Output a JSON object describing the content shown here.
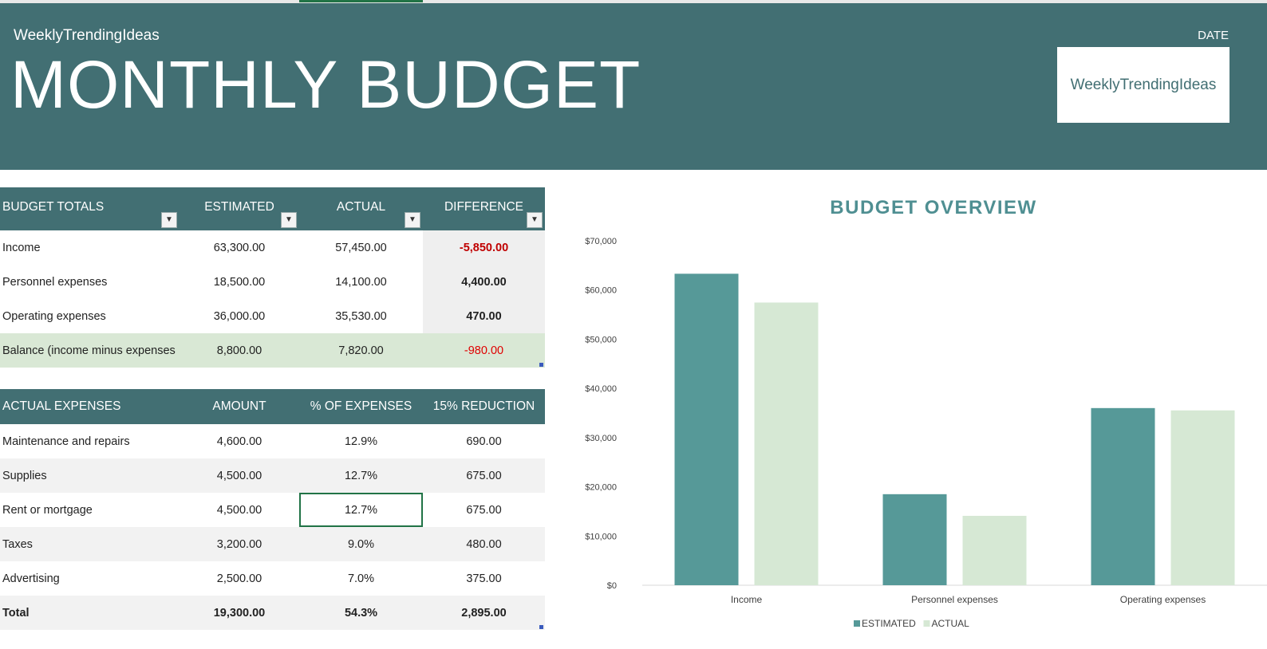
{
  "header": {
    "brand": "WeeklyTrendingIdeas",
    "title": "MONTHLY BUDGET",
    "date_label": "DATE",
    "logo_text": "WeeklyTrendingIdeas"
  },
  "budget_totals": {
    "headers": [
      "BUDGET TOTALS",
      "ESTIMATED",
      "ACTUAL",
      "DIFFERENCE"
    ],
    "rows": [
      {
        "label": "Income",
        "estimated": "63,300.00",
        "actual": "57,450.00",
        "difference": "-5,850.00"
      },
      {
        "label": "Personnel expenses",
        "estimated": "18,500.00",
        "actual": "14,100.00",
        "difference": "4,400.00"
      },
      {
        "label": "Operating expenses",
        "estimated": "36,000.00",
        "actual": "35,530.00",
        "difference": "470.00"
      },
      {
        "label": "Balance (income minus expenses",
        "estimated": "8,800.00",
        "actual": "7,820.00",
        "difference": "-980.00"
      }
    ]
  },
  "actual_expenses": {
    "headers": [
      "ACTUAL EXPENSES",
      "AMOUNT",
      "% OF EXPENSES",
      "15% REDUCTION"
    ],
    "rows": [
      {
        "label": "Maintenance and repairs",
        "amount": "4,600.00",
        "percent": "12.9%",
        "reduction": "690.00"
      },
      {
        "label": "Supplies",
        "amount": "4,500.00",
        "percent": "12.7%",
        "reduction": "675.00"
      },
      {
        "label": "Rent or mortgage",
        "amount": "4,500.00",
        "percent": "12.7%",
        "reduction": "675.00"
      },
      {
        "label": "Taxes",
        "amount": "3,200.00",
        "percent": "9.0%",
        "reduction": "480.00"
      },
      {
        "label": "Advertising",
        "amount": "2,500.00",
        "percent": "7.0%",
        "reduction": "375.00"
      }
    ],
    "total": {
      "label": "Total",
      "amount": "19,300.00",
      "percent": "54.3%",
      "reduction": "2,895.00"
    }
  },
  "chart_data": {
    "type": "bar",
    "title": "BUDGET OVERVIEW",
    "categories": [
      "Income",
      "Personnel expenses",
      "Operating expenses"
    ],
    "series": [
      {
        "name": "ESTIMATED",
        "values": [
          63300,
          18500,
          36000
        ],
        "color": "#569998"
      },
      {
        "name": "ACTUAL",
        "values": [
          57450,
          14100,
          35530
        ],
        "color": "#d6e8d4"
      }
    ],
    "yticks": [
      "$0",
      "$10,000",
      "$20,000",
      "$30,000",
      "$40,000",
      "$50,000",
      "$60,000",
      "$70,000"
    ],
    "ylim": [
      0,
      70000
    ],
    "legend": "bottom",
    "grid": false
  },
  "colors": {
    "header_bg": "#426f73",
    "chart_title": "#4f8f92",
    "negative": "#c00000",
    "selection": "#217346"
  }
}
